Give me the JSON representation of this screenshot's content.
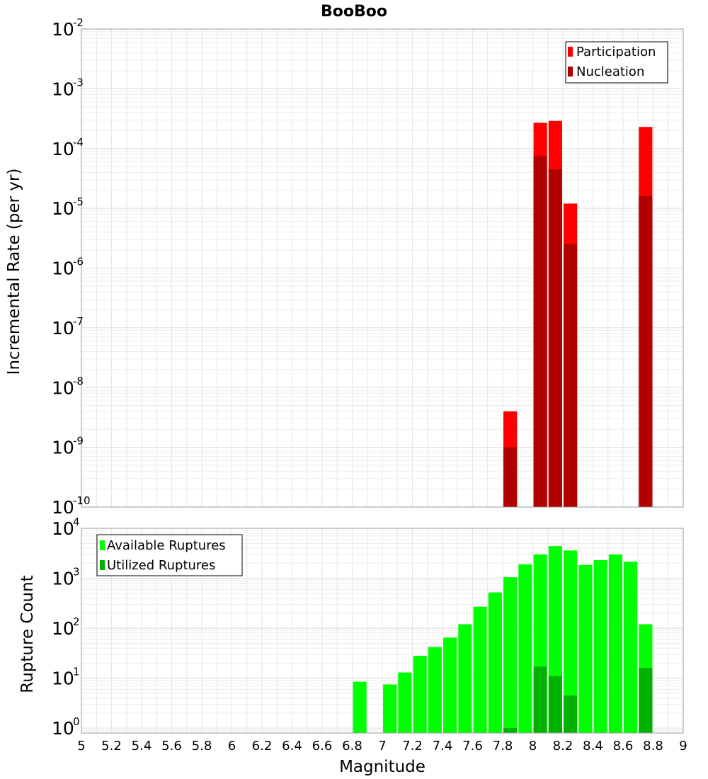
{
  "chart_data": [
    {
      "type": "bar",
      "title": "BooBoo",
      "xlabel": "",
      "ylabel": "Incremental Rate (per yr)",
      "yscale": "log",
      "ylim": [
        1e-10,
        0.01
      ],
      "xlim": [
        5,
        9
      ],
      "grid": true,
      "legend_position": "top-right",
      "y_tick_bases": [
        "10",
        "10",
        "10",
        "10",
        "10",
        "10",
        "10",
        "10",
        "10"
      ],
      "y_tick_exponents": [
        "-10",
        "-9",
        "-8",
        "-7",
        "-6",
        "-5",
        "-4",
        "-3",
        "-2"
      ],
      "y_tick_values": [
        1e-10,
        1e-09,
        1e-08,
        1e-07,
        1e-06,
        1e-05,
        0.0001,
        0.001,
        0.01
      ],
      "bar_width": 0.09,
      "series": [
        {
          "name": "Participation",
          "color": "#ff0000",
          "x": [
            7.85,
            8.05,
            8.15,
            8.25,
            8.75
          ],
          "values": [
            4e-09,
            0.00027,
            0.00029,
            1.2e-05,
            0.00023
          ]
        },
        {
          "name": "Nucleation",
          "color": "#b20000",
          "x": [
            7.85,
            8.05,
            8.15,
            8.25,
            8.75
          ],
          "values": [
            1e-09,
            7.5e-05,
            4.5e-05,
            2.5e-06,
            1.6e-05
          ]
        }
      ]
    },
    {
      "type": "bar",
      "title": "",
      "xlabel": "Magnitude",
      "ylabel": "Rupture Count",
      "yscale": "log",
      "ylim": [
        0.8,
        10000
      ],
      "xlim": [
        5,
        9
      ],
      "grid": true,
      "legend_position": "top-left",
      "x_ticks": [
        "5",
        "5.2",
        "5.4",
        "5.6",
        "5.8",
        "6",
        "6.2",
        "6.4",
        "6.6",
        "6.8",
        "7",
        "7.2",
        "7.4",
        "7.6",
        "7.8",
        "8",
        "8.2",
        "8.4",
        "8.6",
        "8.8",
        "9"
      ],
      "y_tick_bases": [
        "10",
        "10",
        "10",
        "10",
        "10"
      ],
      "y_tick_exponents": [
        "0",
        "1",
        "2",
        "3",
        "4"
      ],
      "y_tick_values": [
        1,
        10,
        100,
        1000,
        10000
      ],
      "bar_width": 0.09,
      "series": [
        {
          "name": "Available Ruptures",
          "color": "#00ff00",
          "x": [
            6.85,
            7.05,
            7.15,
            7.25,
            7.35,
            7.45,
            7.55,
            7.65,
            7.75,
            7.85,
            7.95,
            8.05,
            8.15,
            8.25,
            8.35,
            8.45,
            8.55,
            8.65,
            8.75
          ],
          "values": [
            8.5,
            7.5,
            13,
            28,
            42,
            65,
            120,
            270,
            520,
            1050,
            1900,
            3000,
            4400,
            3600,
            1850,
            2300,
            3000,
            2150,
            120
          ]
        },
        {
          "name": "Utilized Ruptures",
          "color": "#00b200",
          "x": [
            7.85,
            8.05,
            8.15,
            8.25,
            8.75
          ],
          "values": [
            1,
            17,
            11,
            4.5,
            16
          ]
        }
      ]
    }
  ]
}
